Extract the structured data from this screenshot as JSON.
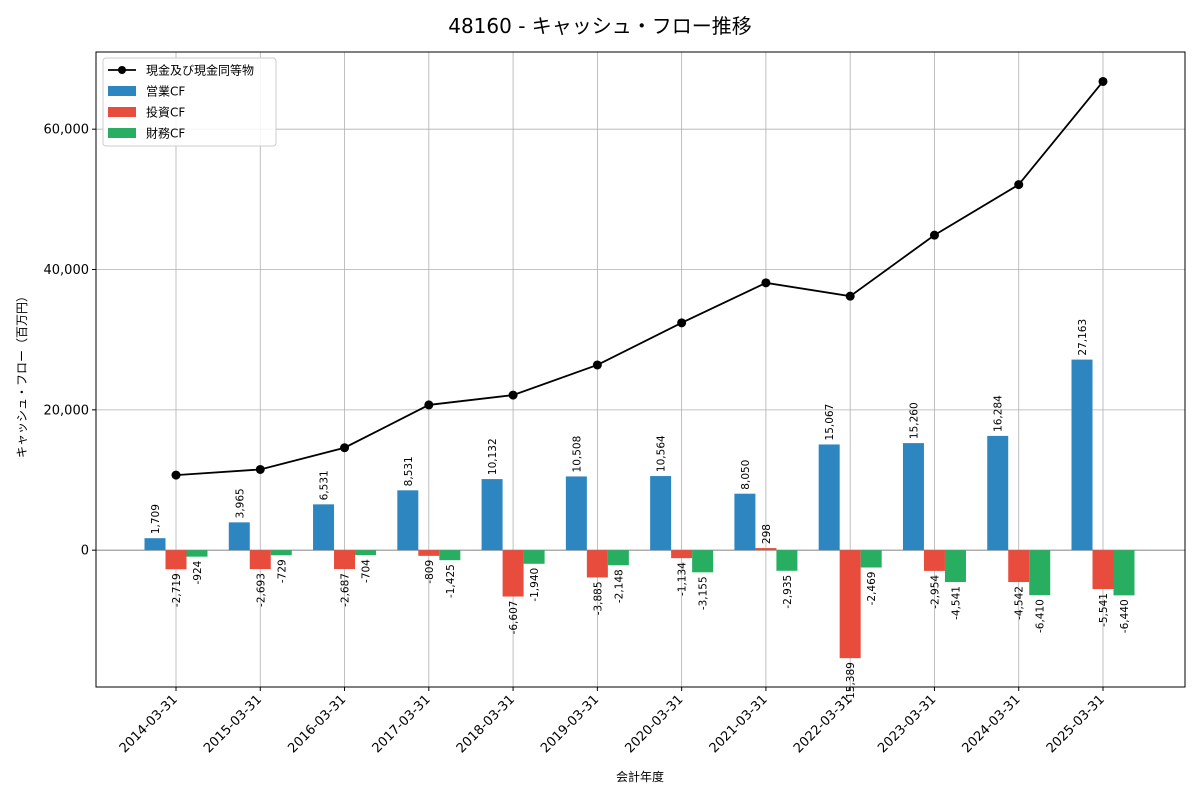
{
  "chart_data": {
    "type": "bar+line",
    "title": "48160 - キャッシュ・フロー推移",
    "xlabel": "会計年度",
    "ylabel": "キャッシュ・フロー（百万円）",
    "ylim": [
      -19500,
      71000
    ],
    "yticks": [
      0,
      20000,
      40000,
      60000
    ],
    "ytick_labels": [
      "0",
      "20,000",
      "40,000",
      "60,000"
    ],
    "grid": true,
    "legend_position": "top-left",
    "categories": [
      "2014-03-31",
      "2015-03-31",
      "2016-03-31",
      "2017-03-31",
      "2018-03-31",
      "2019-03-31",
      "2020-03-31",
      "2021-03-31",
      "2022-03-31",
      "2023-03-31",
      "2024-03-31",
      "2025-03-31"
    ],
    "line_series": {
      "name": "現金及び現金同等物",
      "color": "#000000",
      "values": [
        10700,
        11500,
        14600,
        20700,
        22100,
        26400,
        32400,
        38100,
        36200,
        44900,
        52100,
        66800
      ]
    },
    "series": [
      {
        "name": "営業CF",
        "color": "#2e86c1",
        "values": [
          1709,
          3965,
          6531,
          8531,
          10132,
          10508,
          10564,
          8050,
          15067,
          15260,
          16284,
          27163
        ],
        "labels": [
          "1,709",
          "3,965",
          "6,531",
          "8,531",
          "10,132",
          "10,508",
          "10,564",
          "8,050",
          "15,067",
          "15,260",
          "16,284",
          "27,163"
        ]
      },
      {
        "name": "投資CF",
        "color": "#e74c3c",
        "values": [
          -2719,
          -2693,
          -2687,
          -809,
          -6607,
          -3885,
          -1134,
          298,
          -15389,
          -2954,
          -4542,
          -5541
        ],
        "labels": [
          "-2,719",
          "-2,693",
          "-2,687",
          "-809",
          "-6,607",
          "-3,885",
          "-1,134",
          "298",
          "-15,389",
          "-2,954",
          "-4,542",
          "-5,541"
        ]
      },
      {
        "name": "財務CF",
        "color": "#27ae60",
        "values": [
          -924,
          -729,
          -704,
          -1425,
          -1940,
          -2148,
          -3155,
          -2935,
          -2469,
          -4541,
          -6410,
          -6440
        ],
        "labels": [
          "-924",
          "-729",
          "-704",
          "-1,425",
          "-1,940",
          "-2,148",
          "-3,155",
          "-2,935",
          "-2,469",
          "-4,541",
          "-6,410",
          "-6,440"
        ]
      }
    ]
  }
}
